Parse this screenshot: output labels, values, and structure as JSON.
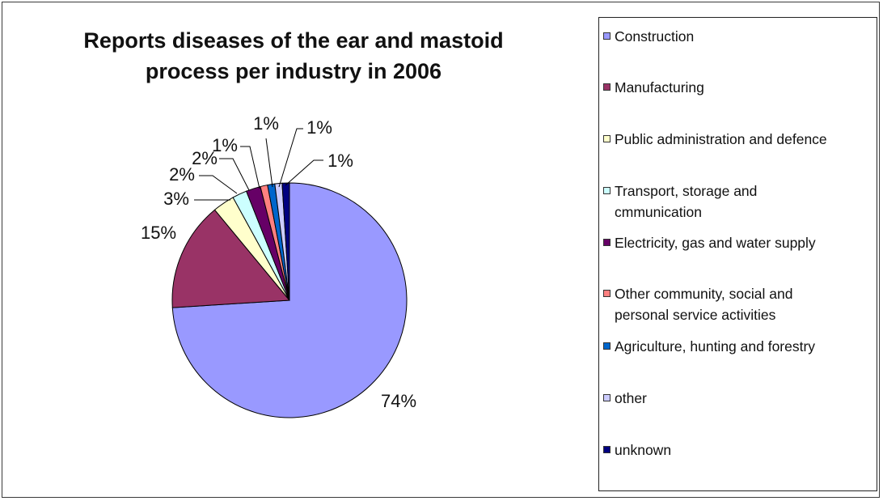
{
  "chart_data": {
    "type": "pie",
    "title_lines": [
      "Reports diseases of the ear and mastoid",
      "process per industry in 2006"
    ],
    "categories": [
      "Construction",
      "Manufacturing",
      "Public administration and defence",
      "Transport, storage and cmmunication",
      "Electricity, gas and water supply",
      "Other community, social and personal service activities",
      "Agriculture, hunting and forestry",
      "other",
      "unknown"
    ],
    "values": [
      74,
      15,
      3,
      2,
      2,
      1,
      1,
      1,
      1
    ],
    "data_labels": [
      "74%",
      "15%",
      "3%",
      "2%",
      "2%",
      "1%",
      "1%",
      "1%",
      "1%"
    ],
    "colors": [
      "#9999ff",
      "#993366",
      "#ffffcc",
      "#ccffff",
      "#660066",
      "#ff8080",
      "#0066cc",
      "#ccccff",
      "#000080"
    ],
    "legend_position": "right",
    "start_angle": "12 o'clock, clockwise"
  },
  "legend": {
    "items": [
      {
        "lines": [
          "Construction"
        ]
      },
      {
        "lines": [
          "Manufacturing"
        ]
      },
      {
        "lines": [
          "Public administration and defence"
        ]
      },
      {
        "lines": [
          "Transport, storage and",
          "cmmunication"
        ]
      },
      {
        "lines": [
          "Electricity, gas and water supply"
        ]
      },
      {
        "lines": [
          "Other community, social and",
          "personal service activities"
        ]
      },
      {
        "lines": [
          "Agriculture, hunting and forestry"
        ]
      },
      {
        "lines": [
          "other"
        ]
      },
      {
        "lines": [
          "unknown"
        ]
      }
    ]
  }
}
